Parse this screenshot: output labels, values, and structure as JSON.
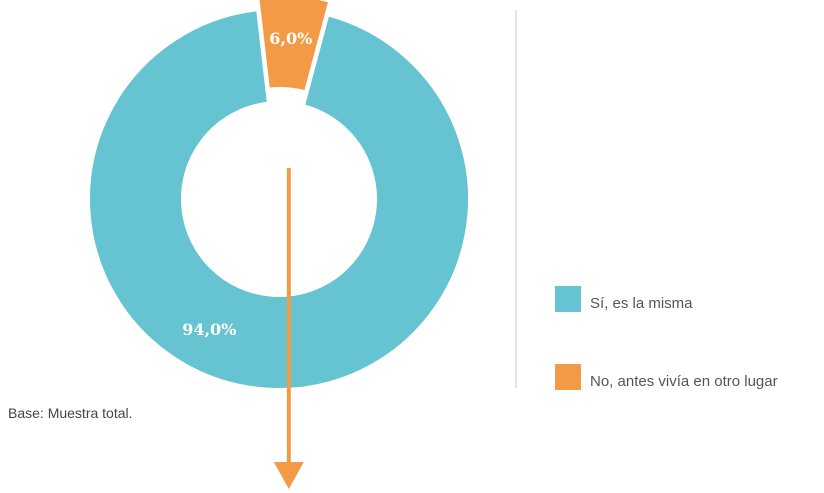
{
  "chart_data": {
    "type": "pie",
    "variant": "donut",
    "title": "",
    "categories": [
      "Sí, es la misma",
      "No, antes vivía en otro lugar"
    ],
    "values": [
      94.0,
      6.0
    ],
    "value_labels": [
      "94,0%",
      "6,0%"
    ],
    "colors": [
      "#65C3D2",
      "#F39A46"
    ],
    "legend_position": "right"
  },
  "note": "Base: Muestra total."
}
